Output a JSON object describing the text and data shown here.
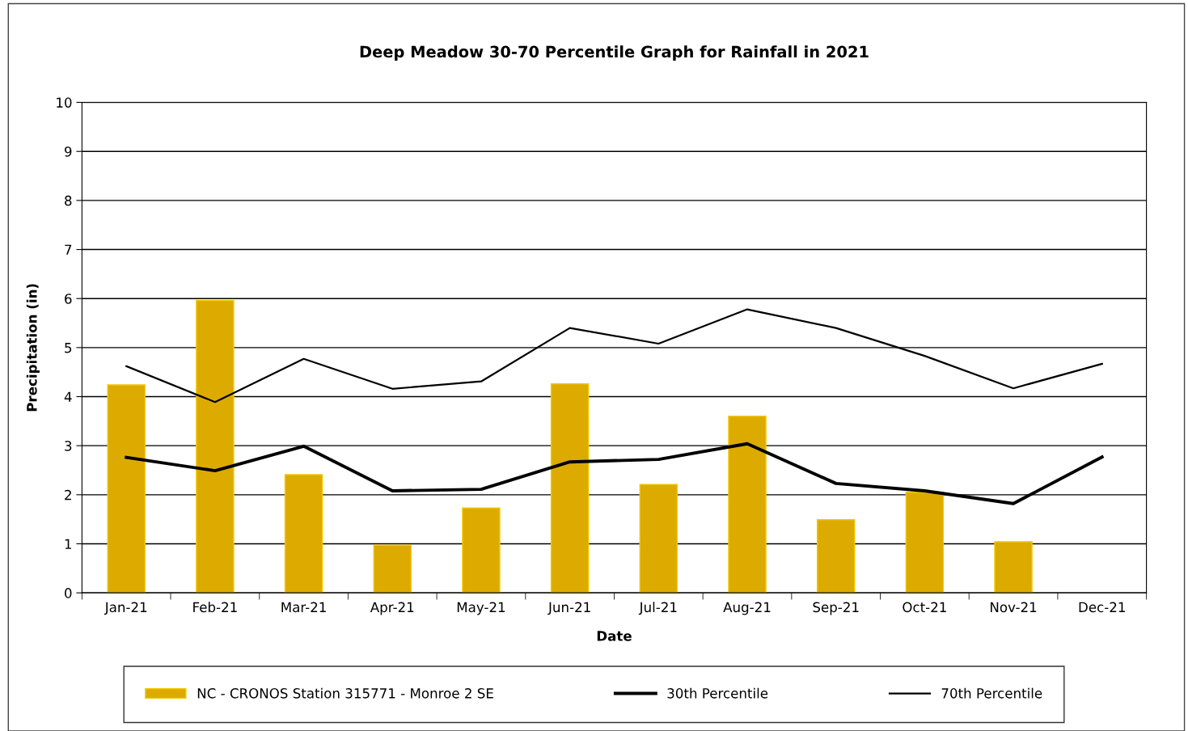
{
  "chart_data": {
    "type": "bar",
    "title": "Deep Meadow 30-70 Percentile Graph for Rainfall in 2021",
    "xlabel": "Date",
    "ylabel": "Precipitation (in)",
    "categories": [
      "Jan-21",
      "Feb-21",
      "Mar-21",
      "Apr-21",
      "May-21",
      "Jun-21",
      "Jul-21",
      "Aug-21",
      "Sep-21",
      "Oct-21",
      "Nov-21",
      "Dec-21"
    ],
    "series": [
      {
        "name": "NC - CRONOS Station 315771 - Monroe 2 SE",
        "color": "#ddaa00",
        "values": [
          4.24,
          5.96,
          2.41,
          0.97,
          1.73,
          4.26,
          2.21,
          3.6,
          1.49,
          2.05,
          1.04,
          null
        ]
      },
      {
        "name": "30th Percentile",
        "type": "line",
        "color": "#000000",
        "values": [
          2.76,
          2.49,
          2.99,
          2.08,
          2.11,
          2.67,
          2.72,
          3.04,
          2.23,
          2.08,
          1.82,
          2.77
        ]
      },
      {
        "name": "70th Percentile",
        "type": "line",
        "color": "#000000",
        "values": [
          4.62,
          3.89,
          4.77,
          4.16,
          4.31,
          5.4,
          5.08,
          5.78,
          5.4,
          4.83,
          4.17,
          4.67
        ]
      }
    ],
    "ylim": [
      0,
      10
    ],
    "yticks": [
      0,
      1,
      2,
      3,
      4,
      5,
      6,
      7,
      8,
      9,
      10
    ],
    "grid": "y",
    "legend": "bottom",
    "marker": "none",
    "line_style": "solid"
  }
}
